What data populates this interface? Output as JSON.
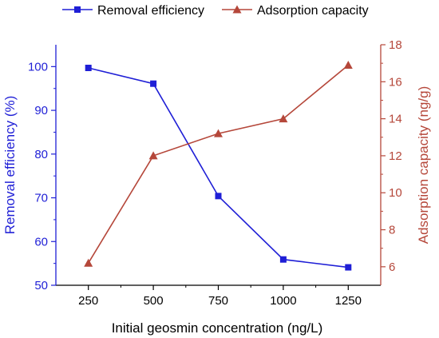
{
  "chart_data": {
    "type": "line",
    "title": "",
    "xlabel": "Initial geosmin concentration (ng/L)",
    "x": [
      250,
      500,
      750,
      1000,
      1250
    ],
    "x_ticks": [
      "250",
      "500",
      "750",
      "1000",
      "1250"
    ],
    "xlim": [
      125,
      1375
    ],
    "y_left": {
      "label": "Removal efficiency (%)",
      "lim": [
        50,
        105
      ],
      "ticks": [
        50,
        60,
        70,
        80,
        90,
        100
      ],
      "color": "#1f1fd6"
    },
    "y_right": {
      "label": "Adsorption capacity (ng/g)",
      "lim": [
        5,
        18
      ],
      "ticks": [
        6,
        8,
        10,
        12,
        14,
        16,
        18
      ],
      "color": "#b5473a"
    },
    "series": [
      {
        "name": "Removal efficiency",
        "axis": "left",
        "marker": "square",
        "color": "#1f1fd6",
        "values": [
          99.7,
          96.1,
          70.4,
          55.9,
          54.1
        ]
      },
      {
        "name": "Adsorption capacity",
        "axis": "right",
        "marker": "triangle",
        "color": "#b5473a",
        "values": [
          6.2,
          12.0,
          13.2,
          14.0,
          16.9
        ]
      }
    ],
    "legend_position": "top"
  }
}
